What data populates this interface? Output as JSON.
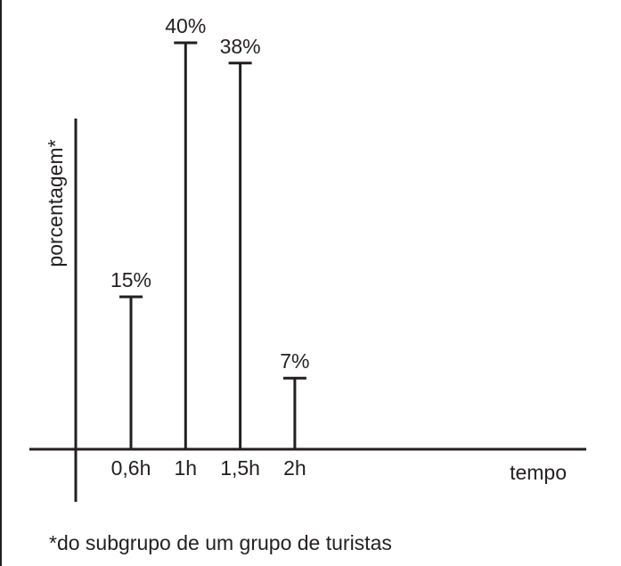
{
  "chart_data": {
    "type": "bar",
    "categories": [
      "0,6h",
      "1h",
      "1,5h",
      "2h"
    ],
    "values": [
      15,
      40,
      38,
      7
    ],
    "data_labels": [
      "15%",
      "40%",
      "38%",
      "7%"
    ],
    "title": "",
    "xlabel": "tempo",
    "ylabel": "porcentagem*",
    "ylim": [
      0,
      40
    ],
    "grid": false,
    "footnote": "*do subgrupo de um grupo de turistas",
    "colors": {
      "ink": "#231f20"
    }
  }
}
